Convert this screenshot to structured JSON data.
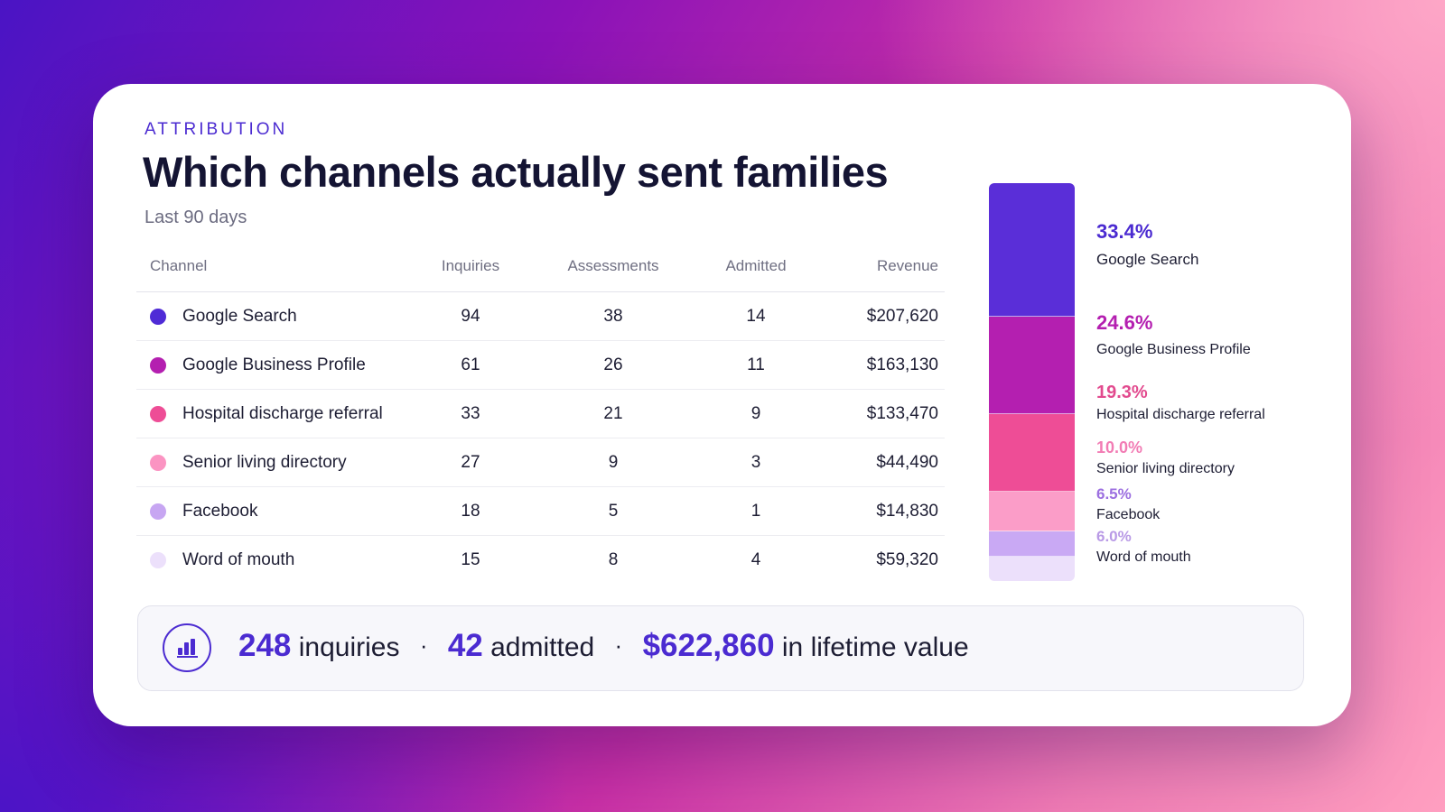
{
  "header": {
    "eyebrow": "ATTRIBUTION",
    "title": "Which channels actually sent families",
    "subtitle": "Last 90 days"
  },
  "table": {
    "columns": [
      "Channel",
      "Inquiries",
      "Assessments",
      "Admitted",
      "Revenue"
    ],
    "rows": [
      {
        "channel": "Google Search",
        "inquiries": "94",
        "assessments": "38",
        "admitted": "14",
        "revenue": "$207,620",
        "color": "#4f2bd6"
      },
      {
        "channel": "Google Business Profile",
        "inquiries": "61",
        "assessments": "26",
        "admitted": "11",
        "revenue": "$163,130",
        "color": "#b41fb0"
      },
      {
        "channel": "Hospital discharge referral",
        "inquiries": "33",
        "assessments": "21",
        "admitted": "9",
        "revenue": "$133,470",
        "color": "#ee4d96"
      },
      {
        "channel": "Senior living directory",
        "inquiries": "27",
        "assessments": "9",
        "admitted": "3",
        "revenue": "$44,490",
        "color": "#fb94c2"
      },
      {
        "channel": "Facebook",
        "inquiries": "18",
        "assessments": "5",
        "admitted": "1",
        "revenue": "$14,830",
        "color": "#c7a6f2"
      },
      {
        "channel": "Word of mouth",
        "inquiries": "15",
        "assessments": "8",
        "admitted": "4",
        "revenue": "$59,320",
        "color": "#ece0fb"
      }
    ]
  },
  "share": {
    "items": [
      {
        "pct": "33.4%",
        "value": 33.4,
        "label": "Google Search",
        "color": "#5a2ed8",
        "pct_color": "#4b2bd1"
      },
      {
        "pct": "24.6%",
        "value": 24.6,
        "label": "Google Business Profile",
        "color": "#b41fb0",
        "pct_color": "#b41fb0"
      },
      {
        "pct": "19.3%",
        "value": 19.3,
        "label": "Hospital discharge referral",
        "color": "#ee4d96",
        "pct_color": "#e24a8e"
      },
      {
        "pct": "10.0%",
        "value": 10.0,
        "label": "Senior living directory",
        "color": "#fb9dc8",
        "pct_color": "#f27cb4"
      },
      {
        "pct": "6.5%",
        "value": 6.5,
        "label": "Facebook",
        "color": "#c9a9f4",
        "pct_color": "#9c6fe0"
      },
      {
        "pct": "6.0%",
        "value": 6.0,
        "label": "Word of mouth",
        "color": "#ece0fb",
        "pct_color": "#b99ae6"
      }
    ]
  },
  "summary": {
    "inquiries_value": "248",
    "inquiries_label": "inquiries",
    "admitted_value": "42",
    "admitted_label": "admitted",
    "ltv_value": "$622,860",
    "ltv_label": "in lifetime value",
    "separator": "·",
    "icon": "bar-chart-icon"
  }
}
